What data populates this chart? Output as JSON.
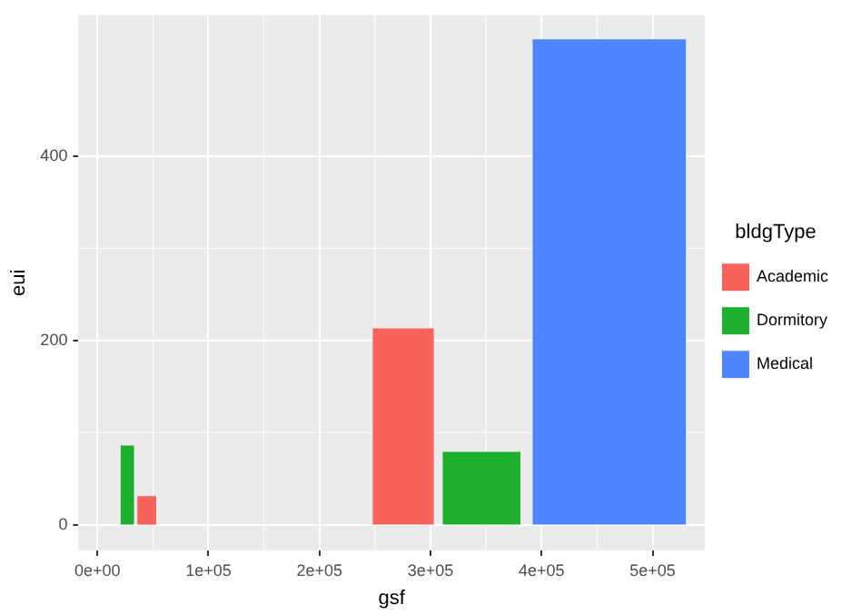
{
  "chart_data": {
    "type": "histogram",
    "xlabel": "gsf",
    "ylabel": "eui",
    "legend_title": "bldgType",
    "legend": "right",
    "grid": true,
    "bins": [
      21000,
      33000,
      36000,
      53000,
      248000,
      303000,
      311000,
      381000,
      392000,
      530000
    ],
    "series": [
      {
        "name": "Academic",
        "color": "#f8635c",
        "values": [
          null,
          null,
          31,
          null,
          213,
          null,
          null,
          null,
          null
        ]
      },
      {
        "name": "Dormitory",
        "color": "#1db02c",
        "values": [
          86,
          null,
          null,
          null,
          null,
          null,
          79,
          null,
          null
        ]
      },
      {
        "name": "Medical",
        "color": "#4f85ff",
        "values": [
          null,
          null,
          null,
          null,
          null,
          null,
          null,
          null,
          527
        ]
      }
    ],
    "xlim": [
      -17000,
      547000
    ],
    "ylim": [
      -28,
      553
    ],
    "xticks": [
      {
        "value": 0,
        "label": "0e+00"
      },
      {
        "value": 100000,
        "label": "1e+05"
      },
      {
        "value": 200000,
        "label": "2e+05"
      },
      {
        "value": 300000,
        "label": "3e+05"
      },
      {
        "value": 400000,
        "label": "4e+05"
      },
      {
        "value": 500000,
        "label": "5e+05"
      }
    ],
    "yticks": [
      0,
      200,
      400
    ]
  }
}
